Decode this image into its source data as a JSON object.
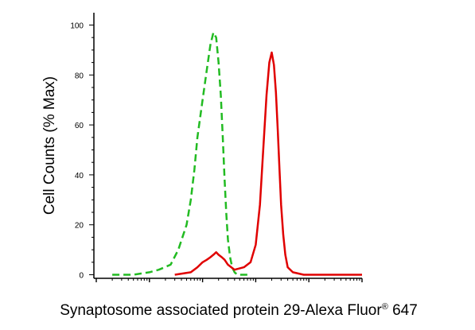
{
  "chart_data": {
    "type": "line",
    "xlabel": "Synaptosome associated protein 29-Alexa Fluor",
    "xlabel_superscript": "®",
    "xlabel_suffix": " 647",
    "ylabel": "Cell Counts (% Max)",
    "x_scale": "log",
    "ylim": [
      0,
      100
    ],
    "y_ticks": [
      0,
      20,
      40,
      60,
      80,
      100
    ],
    "grid": false,
    "legend": "none",
    "series": [
      {
        "color": "#22bb22",
        "style": "dashed",
        "x": [
          2,
          5,
          10,
          15,
          25,
          35,
          50,
          60,
          70,
          80,
          100,
          120,
          140,
          160,
          180,
          200,
          220,
          240,
          260,
          280,
          300,
          330,
          360,
          400,
          450,
          500,
          600,
          800
        ],
        "y": [
          0,
          0,
          1,
          2,
          4,
          10,
          20,
          30,
          42,
          55,
          70,
          82,
          92,
          97,
          95,
          85,
          72,
          55,
          38,
          24,
          14,
          7,
          3,
          1,
          0,
          0,
          0,
          0
        ]
      },
      {
        "color": "#e00000",
        "style": "solid",
        "x": [
          30,
          60,
          80,
          100,
          120,
          140,
          160,
          180,
          200,
          230,
          260,
          300,
          400,
          600,
          800,
          1000,
          1200,
          1400,
          1600,
          1800,
          2000,
          2200,
          2400,
          2600,
          2800,
          3000,
          3300,
          3600,
          4000,
          5000,
          8000,
          100000
        ],
        "y": [
          0,
          1,
          3,
          5,
          6,
          7,
          8,
          9,
          8,
          7,
          6,
          4,
          2,
          3,
          5,
          12,
          28,
          52,
          72,
          85,
          89,
          84,
          73,
          58,
          42,
          28,
          16,
          8,
          3,
          1,
          0,
          0
        ]
      }
    ]
  }
}
